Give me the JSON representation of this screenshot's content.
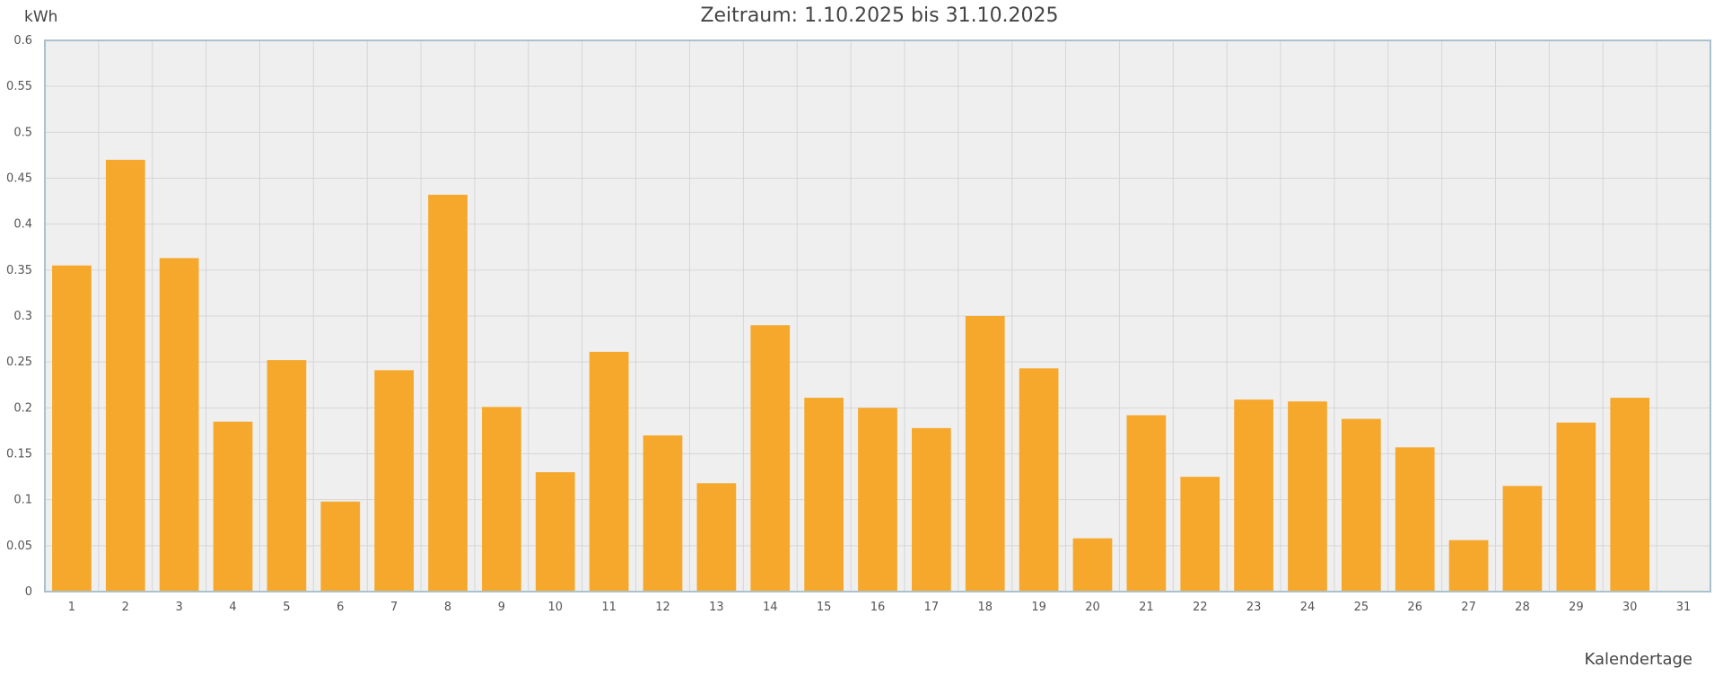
{
  "chart_data": {
    "type": "bar",
    "title": "Zeitraum: 1.10.2025 bis 31.10.2025",
    "ylabel": "kWh",
    "xlabel": "Kalendertage",
    "ylim": [
      0,
      0.6
    ],
    "yticks": [
      "0",
      "0.05",
      "0.1",
      "0.15",
      "0.2",
      "0.25",
      "0.3",
      "0.35",
      "0.4",
      "0.45",
      "0.5",
      "0.55",
      "0.6"
    ],
    "categories": [
      "1",
      "2",
      "3",
      "4",
      "5",
      "6",
      "7",
      "8",
      "9",
      "10",
      "11",
      "12",
      "13",
      "14",
      "15",
      "16",
      "17",
      "18",
      "19",
      "20",
      "21",
      "22",
      "23",
      "24",
      "25",
      "26",
      "27",
      "28",
      "29",
      "30",
      "31"
    ],
    "values": [
      0.355,
      0.47,
      0.363,
      0.185,
      0.252,
      0.098,
      0.241,
      0.432,
      0.201,
      0.13,
      0.261,
      0.17,
      0.118,
      0.29,
      0.211,
      0.2,
      0.178,
      0.3,
      0.243,
      0.058,
      0.192,
      0.125,
      0.209,
      0.207,
      0.188,
      0.157,
      0.056,
      0.115,
      0.184,
      0.211,
      0.001
    ],
    "grid": true,
    "colors": {
      "bar": "#f5a82c",
      "plot_background": "#efefef",
      "grid": "#d6d6d6",
      "frame": "#a9c2cc"
    }
  }
}
